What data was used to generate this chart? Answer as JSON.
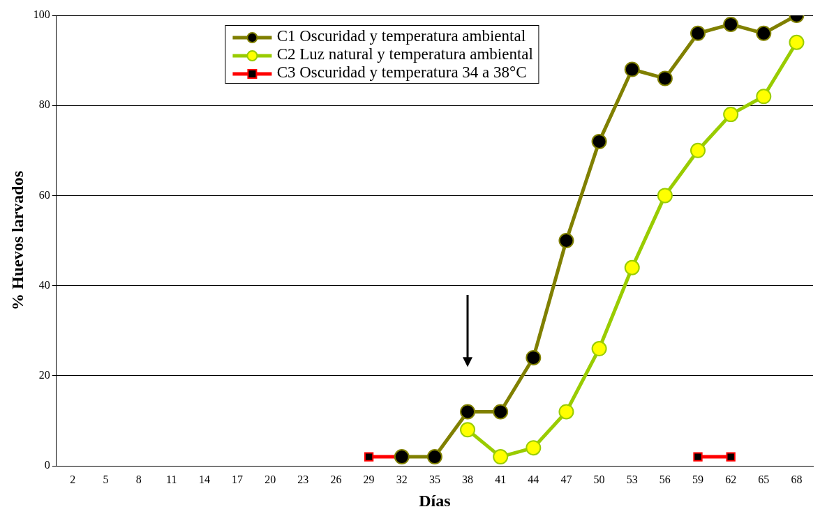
{
  "chart_data": {
    "type": "line",
    "xlabel": "Días",
    "ylabel": "% Huevos larvados",
    "categories": [
      "2",
      "5",
      "8",
      "11",
      "14",
      "17",
      "20",
      "23",
      "26",
      "29",
      "32",
      "35",
      "38",
      "41",
      "44",
      "47",
      "50",
      "53",
      "56",
      "59",
      "62",
      "65",
      "68"
    ],
    "series": [
      {
        "name": "C1 Oscuridad y temperatura ambiental",
        "color": "#808000",
        "marker": "circle",
        "values": [
          null,
          null,
          null,
          null,
          null,
          null,
          null,
          null,
          null,
          null,
          2,
          2,
          12,
          12,
          24,
          50,
          72,
          88,
          86,
          96,
          98,
          96,
          100
        ]
      },
      {
        "name": "C2 Luz natural y temperatura ambiental",
        "color": "#99cc00",
        "marker": "circle",
        "values": [
          null,
          null,
          null,
          null,
          null,
          null,
          null,
          null,
          null,
          null,
          null,
          null,
          8,
          2,
          4,
          12,
          26,
          44,
          60,
          70,
          78,
          82,
          94
        ]
      },
      {
        "name": "C3 Oscuridad y temperatura 34 a 38°C",
        "color": "#ff0000",
        "marker": "square",
        "values": [
          null,
          null,
          null,
          null,
          null,
          null,
          null,
          null,
          null,
          2,
          2,
          null,
          null,
          null,
          null,
          null,
          null,
          null,
          null,
          2,
          2,
          null,
          null
        ]
      }
    ],
    "ylim": [
      0,
      100
    ],
    "yticks": [
      0,
      20,
      40,
      60,
      80,
      100
    ],
    "grid": "y",
    "legend": "top"
  }
}
